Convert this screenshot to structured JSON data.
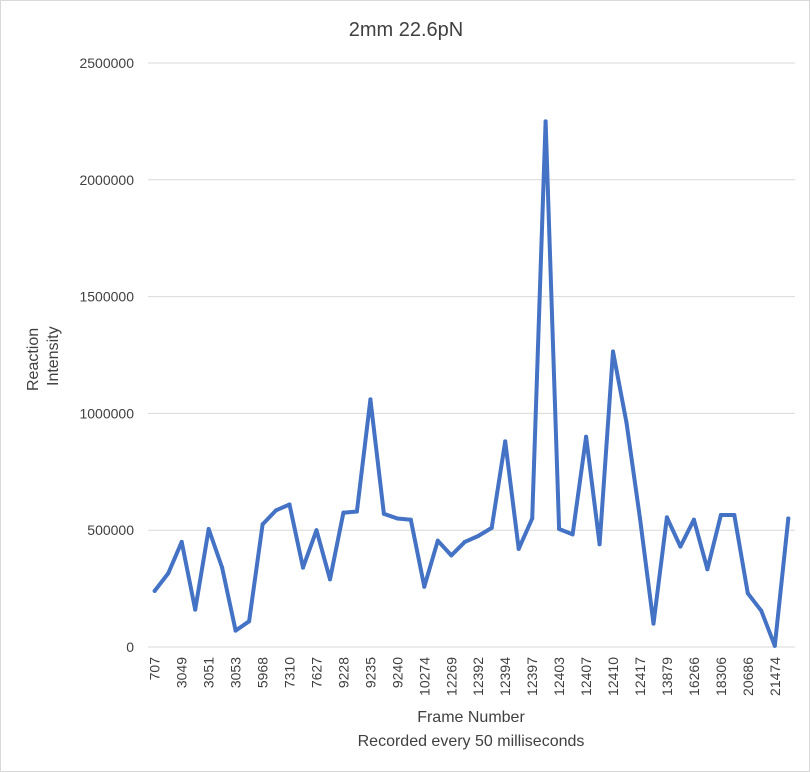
{
  "chart_data": {
    "type": "line",
    "title": "2mm 22.6pN",
    "xlabel": "Frame Number",
    "xlabel_sub": "Recorded every 50 milliseconds",
    "ylabel_lines": [
      "Reaction",
      "Intensity"
    ],
    "ylim": [
      0,
      2500000
    ],
    "yticks": [
      0,
      500000,
      1000000,
      1500000,
      2000000,
      2500000
    ],
    "grid": true,
    "legend": "none",
    "series_color": "#4472c4",
    "categories": [
      "707",
      "",
      "3049",
      "",
      "3051",
      "",
      "3053",
      "",
      "5968",
      "",
      "7310",
      "",
      "7627",
      "",
      "9228",
      "",
      "9235",
      "",
      "9240",
      "",
      "10274",
      "",
      "12269",
      "",
      "12392",
      "",
      "12394",
      "",
      "12397",
      "",
      "12403",
      "",
      "12407",
      "",
      "12410",
      "",
      "12417",
      "",
      "13879",
      "",
      "16266",
      "",
      "18306",
      "",
      "20686",
      "",
      "21474",
      ""
    ],
    "values": [
      240000,
      315000,
      450000,
      160000,
      505000,
      340000,
      70000,
      110000,
      525000,
      585000,
      610000,
      340000,
      500000,
      290000,
      575000,
      580000,
      1060000,
      570000,
      550000,
      545000,
      258000,
      455000,
      392000,
      450000,
      475000,
      510000,
      880000,
      420000,
      550000,
      2250000,
      505000,
      482000,
      900000,
      440000,
      1265000,
      960000,
      550000,
      100000,
      555000,
      430000,
      545000,
      333000,
      565000,
      565000,
      230000,
      155000,
      5000,
      550000
    ]
  }
}
